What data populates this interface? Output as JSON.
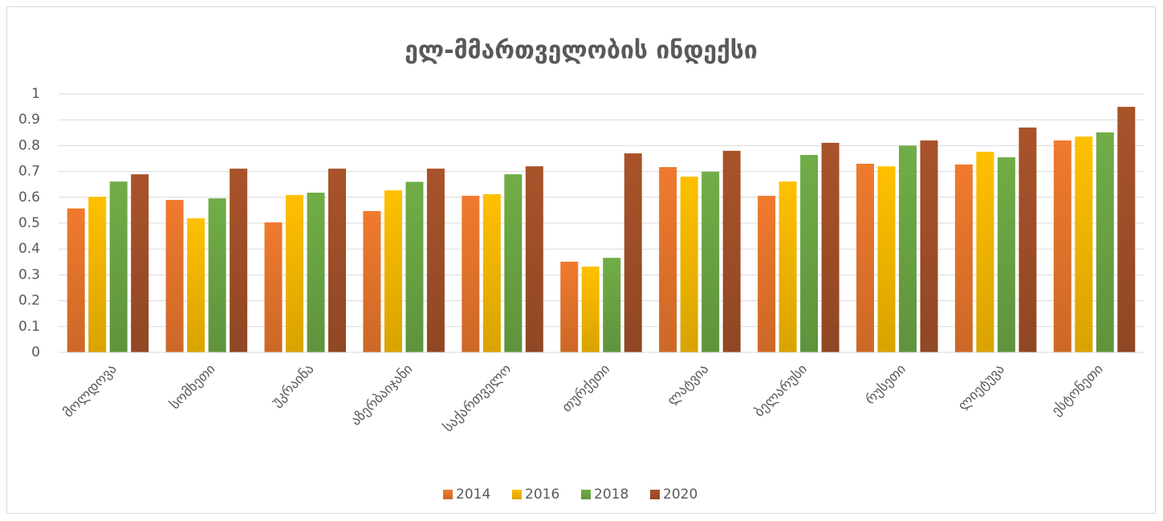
{
  "chart_data": {
    "type": "bar",
    "title": "ელ-მმართველობის ინდექსი",
    "categories": [
      "მოლდოვა",
      "სომხეთი",
      "უკრაინა",
      "აზერბაიჯანი",
      "საქართველო",
      "თურქეთი",
      "ლატვია",
      "ბელარუსი",
      "რუსეთი",
      "ლიეტუვა",
      "ესტონეთი"
    ],
    "series": [
      {
        "name": "2014",
        "color": "#f07a2e",
        "values": [
          0.557,
          0.59,
          0.503,
          0.547,
          0.606,
          0.351,
          0.717,
          0.606,
          0.73,
          0.727,
          0.82
        ]
      },
      {
        "name": "2016",
        "color": "#ffc000",
        "values": [
          0.602,
          0.519,
          0.609,
          0.627,
          0.612,
          0.332,
          0.68,
          0.661,
          0.72,
          0.776,
          0.835
        ]
      },
      {
        "name": "2018",
        "color": "#70ad47",
        "values": [
          0.661,
          0.596,
          0.618,
          0.66,
          0.689,
          0.366,
          0.699,
          0.764,
          0.8,
          0.755,
          0.851
        ]
      },
      {
        "name": "2020",
        "color": "#a9532a",
        "values": [
          0.689,
          0.711,
          0.711,
          0.711,
          0.72,
          0.77,
          0.78,
          0.811,
          0.82,
          0.87,
          0.95
        ]
      }
    ],
    "ylim": [
      0,
      1
    ],
    "yticks": [
      0,
      0.1,
      0.2,
      0.3,
      0.4,
      0.5,
      0.6,
      0.7,
      0.8,
      0.9,
      1
    ],
    "grid": true,
    "legend": "bottom"
  }
}
